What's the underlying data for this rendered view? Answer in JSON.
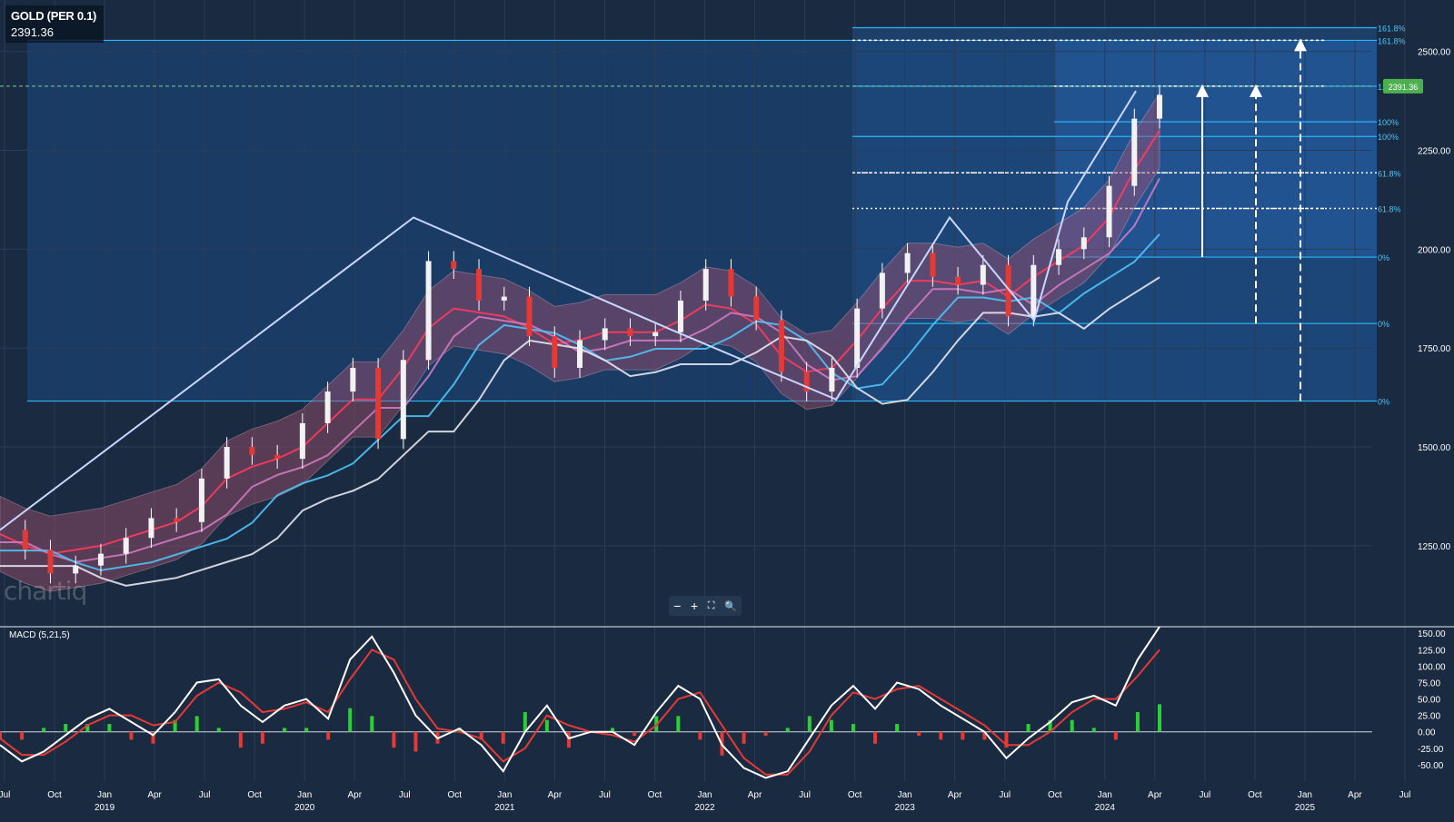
{
  "header": {
    "symbol": "GOLD (PER 0.1)",
    "last_price": "2391.36"
  },
  "price_tag": "2391.36",
  "logo_text": "chartiq",
  "zoom_controls": {
    "zoom_out": "−",
    "zoom_in": "+",
    "fullscreen": "⛶",
    "zoom_search": "🔍"
  },
  "macd_label": "MACD (5,21,5)",
  "colors": {
    "bg": "#1a2a40",
    "fib_box": "#1a4a7a",
    "envelope": "#a35070",
    "up": "#2bd134",
    "down": "#e53935"
  },
  "chart_data": [
    {
      "type": "line",
      "name": "price",
      "x_ticks_month": [
        "Jul",
        "Oct",
        "Jan",
        "Apr",
        "Jul",
        "Oct",
        "Jan",
        "Apr",
        "Jul",
        "Oct",
        "Jan",
        "Apr",
        "Jul",
        "Oct",
        "Jan",
        "Apr",
        "Jul",
        "Oct",
        "Jan",
        "Apr",
        "Jul",
        "Oct",
        "Jan",
        "Apr",
        "Jul",
        "Oct",
        "Jan",
        "Apr",
        "Jul"
      ],
      "x_ticks_year": [
        "2019",
        "2020",
        "2021",
        "2022",
        "2023",
        "2024",
        "2025"
      ],
      "y_ticks": [
        "2500.00",
        "2250.00",
        "2000.00",
        "1750.00",
        "1500.00",
        "1250.00"
      ],
      "ylim": [
        1050,
        2630
      ],
      "series": [
        {
          "values": [
            1290,
            1240,
            1180,
            1200,
            1230,
            1270,
            1320,
            1310,
            1420,
            1500,
            1480,
            1470,
            1560,
            1640,
            1700,
            1520,
            1720,
            1970,
            1950,
            1870,
            1880,
            1780,
            1700,
            1770,
            1800,
            1780,
            1790,
            1870,
            1950,
            1880,
            1820,
            1690,
            1640,
            1700,
            1850,
            1940,
            1990,
            1930,
            1910,
            1960,
            1830,
            1960,
            2000,
            2030,
            2160,
            2330,
            2390
          ]
        },
        {
          "values": [
            1280,
            1250,
            1230,
            1240,
            1250,
            1270,
            1290,
            1310,
            1350,
            1420,
            1450,
            1470,
            1500,
            1560,
            1620,
            1620,
            1700,
            1800,
            1850,
            1840,
            1830,
            1800,
            1760,
            1770,
            1790,
            1790,
            1790,
            1820,
            1860,
            1850,
            1810,
            1730,
            1690,
            1700,
            1770,
            1850,
            1920,
            1920,
            1910,
            1920,
            1880,
            1930,
            1970,
            2010,
            2080,
            2200,
            2300
          ]
        }
      ]
    },
    {
      "type": "line",
      "name": "fibonacci",
      "levels": [
        "161.8%",
        "161.8%",
        "127.2%",
        "100%",
        "100%",
        "61.8%",
        "61.8%",
        "0%",
        "0%",
        "0%"
      ],
      "values": [
        2560,
        2528,
        2412,
        2322,
        2285,
        2193,
        2103,
        1980,
        1812,
        1616
      ]
    },
    {
      "type": "bar",
      "name": "MACD histogram",
      "y_ticks": [
        "150.00",
        "125.00",
        "100.00",
        "75.00",
        "50.00",
        "25.00",
        "0.00",
        "-25.00",
        "-50.00"
      ],
      "ylim": [
        -75,
        160
      ],
      "macd": [
        -20,
        -45,
        -30,
        -5,
        20,
        35,
        15,
        -5,
        30,
        75,
        80,
        40,
        15,
        40,
        50,
        20,
        110,
        145,
        90,
        25,
        -10,
        5,
        -20,
        -60,
        0,
        40,
        -10,
        0,
        0,
        -20,
        30,
        70,
        50,
        -20,
        -55,
        -70,
        -60,
        -10,
        40,
        70,
        35,
        75,
        65,
        40,
        20,
        0,
        -40,
        -10,
        15,
        45,
        55,
        40,
        110,
        160
      ],
      "signal": [
        -10,
        -35,
        -35,
        -15,
        10,
        25,
        25,
        10,
        15,
        55,
        75,
        60,
        30,
        35,
        45,
        30,
        80,
        125,
        110,
        50,
        5,
        0,
        -10,
        -45,
        -25,
        25,
        10,
        0,
        -5,
        -15,
        10,
        50,
        60,
        10,
        -40,
        -65,
        -65,
        -30,
        25,
        60,
        50,
        65,
        70,
        50,
        30,
        10,
        -20,
        -20,
        0,
        30,
        50,
        50,
        85,
        125
      ]
    }
  ]
}
